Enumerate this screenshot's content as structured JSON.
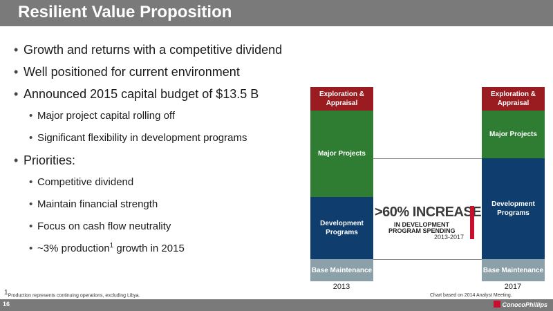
{
  "slide": {
    "title": "Resilient Value Proposition",
    "page_number": "16",
    "logo_text": "ConocoPhillips"
  },
  "bullets": [
    {
      "level": 1,
      "text": "Growth and returns with a competitive dividend"
    },
    {
      "level": 1,
      "text": "Well positioned for current environment"
    },
    {
      "level": 1,
      "text": "Announced 2015 capital budget of $13.5 B"
    },
    {
      "level": 2,
      "text": "Major project capital rolling off"
    },
    {
      "level": 2,
      "text": "Significant flexibility in development programs"
    },
    {
      "level": 1,
      "text": "Priorities:"
    },
    {
      "level": 2,
      "text": "Competitive dividend"
    },
    {
      "level": 2,
      "text": "Maintain financial strength"
    },
    {
      "level": 2,
      "text": "Focus on cash flow neutrality"
    },
    {
      "level": 2,
      "text_before": "~3% production",
      "sup": "1",
      "text_after": " growth in 2015"
    }
  ],
  "chart_data": {
    "type": "bar",
    "stacked": true,
    "categories": [
      "2013",
      "2017"
    ],
    "segments": [
      "Exploration & Appraisal",
      "Major Projects",
      "Development Programs",
      "Base Maintenance"
    ],
    "colors": {
      "Exploration & Appraisal": "#9b1c20",
      "Major Projects": "#2e7d32",
      "Development Programs": "#0e3d6e",
      "Base Maintenance": "#8ba0a8"
    },
    "callout": {
      "big": ">60% INCREASE",
      "line1": "IN DEVELOPMENT",
      "line2": "PROGRAM SPENDING",
      "years": "2013-2017"
    }
  },
  "footnote": "Production represents continuing operations, excluding Libya.",
  "footnote_mark": "1",
  "source_note": "Chart based on 2014 Analyst Meeting."
}
